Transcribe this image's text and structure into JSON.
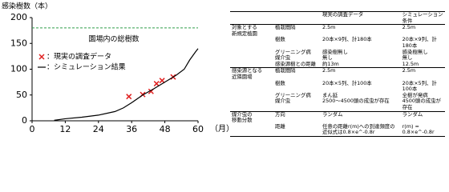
{
  "chart_data": {
    "type": "line",
    "y_label": "感染樹数（本）",
    "x_label": "（月）",
    "xlim": [
      0,
      60
    ],
    "xticks": [
      0,
      12,
      24,
      36,
      48,
      60
    ],
    "ylim": [
      0,
      200
    ],
    "yticks": [
      0,
      50,
      100,
      150,
      200
    ],
    "reference_line": {
      "value": 180,
      "label": "園場内の総樹数",
      "color": "#2e9e4a"
    },
    "series": [
      {
        "name": "：現実の調査データ",
        "type": "scatter",
        "color": "#e02020",
        "x": [
          35,
          40,
          43,
          45,
          47,
          51
        ],
        "values": [
          47,
          51,
          57,
          72,
          78,
          85
        ]
      },
      {
        "name": "：シミュレーション結果",
        "type": "line",
        "color": "#000000",
        "x": [
          8,
          12,
          18,
          24,
          30,
          33,
          36,
          40,
          44,
          48,
          52,
          55,
          57,
          59,
          60
        ],
        "values": [
          1,
          4,
          7,
          11,
          18,
          25,
          35,
          50,
          62,
          75,
          88,
          100,
          118,
          133,
          140
        ]
      }
    ]
  },
  "table": {
    "header": [
      "現実の調査データ",
      "シミュレーション条件"
    ],
    "groups": [
      {
        "label": [
          "対象とする",
          "新規定植園"
        ],
        "rows": [
          [
            "植栽間隔",
            "2.5m",
            "2.5m"
          ],
          [
            "樹数",
            "20本×9列、計180本",
            "20本×9列、計180本"
          ],
          [
            "グリーニング病",
            "感染樹無し",
            "感染樹無し"
          ],
          [
            "媒介虫",
            "無し",
            "無し"
          ],
          [
            "感染源樹との距離",
            "約13m",
            "12.5m"
          ]
        ]
      },
      {
        "label": [
          "感染源となる",
          "近隣園場"
        ],
        "rows": [
          [
            "植栽間隔",
            "2.5m",
            "2.5m"
          ],
          [
            "樹数",
            "20本×5列、計100本",
            "20本×5列、計100本"
          ],
          [
            "グリーニング病",
            "まん延",
            "全樹が発病"
          ],
          [
            "媒介虫",
            "2500～4500頭の成虫が存在",
            "4500頭の成虫が存在"
          ]
        ]
      },
      {
        "label": [
          "媒介虫の",
          "移動分散"
        ],
        "rows": [
          [
            "方向",
            "ランダム",
            "ランダム"
          ],
          [
            "距離",
            "任意の距離r(m)への到達頻度の近似式は0.8×e^-0.8r",
            "r(m) = 0.8×e^-0.8r"
          ]
        ]
      }
    ]
  }
}
